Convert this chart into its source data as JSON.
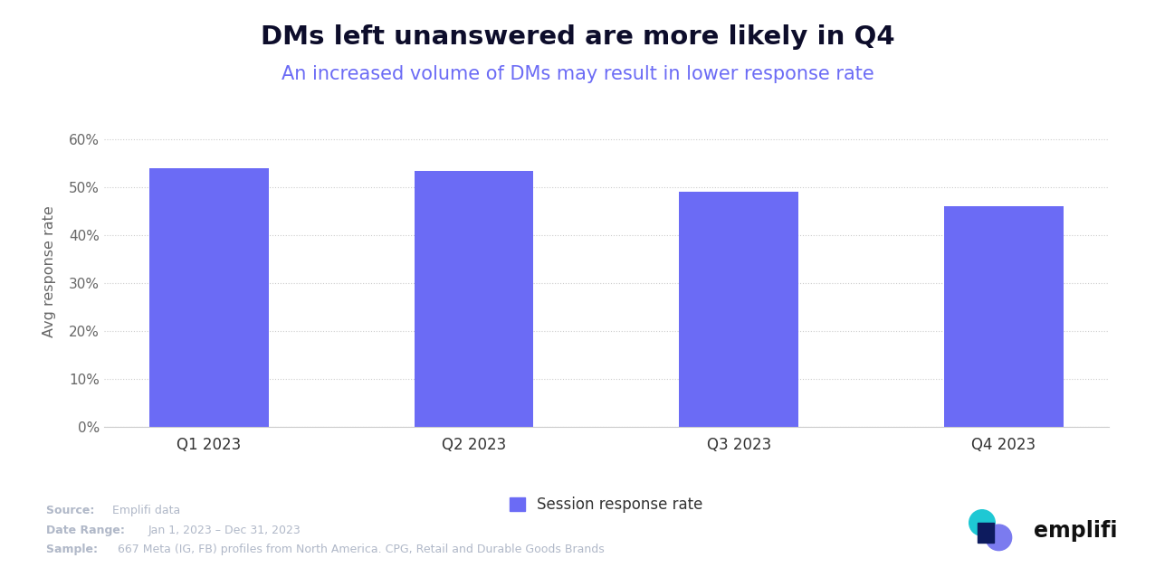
{
  "title": "DMs left unanswered are more likely in Q4",
  "subtitle": "An increased volume of DMs may result in lower response rate",
  "categories": [
    "Q1 2023",
    "Q2 2023",
    "Q3 2023",
    "Q4 2023"
  ],
  "values": [
    0.54,
    0.535,
    0.491,
    0.461
  ],
  "bar_color": "#6B6BF5",
  "ylabel": "Avg response rate",
  "ylim": [
    0,
    0.65
  ],
  "yticks": [
    0.0,
    0.1,
    0.2,
    0.3,
    0.4,
    0.5,
    0.6
  ],
  "ytick_labels": [
    "0%",
    "10%",
    "20%",
    "30%",
    "40%",
    "50%",
    "60%"
  ],
  "legend_label": "Session response rate",
  "legend_color": "#6B6BF5",
  "title_color": "#0d0d2b",
  "subtitle_color": "#6B6BF5",
  "title_fontsize": 21,
  "subtitle_fontsize": 15,
  "source_label": "Source:",
  "source_text": "Emplifi data",
  "date_range_label": "Date Range:",
  "date_range_text": "Jan 1, 2023 – Dec 31, 2023",
  "sample_label": "Sample:",
  "sample_text": "667 Meta (IG, FB) profiles from North America. CPG, Retail and Durable Goods Brands",
  "footer_color": "#b0b8c8",
  "background_color": "#ffffff",
  "bar_width": 0.45
}
